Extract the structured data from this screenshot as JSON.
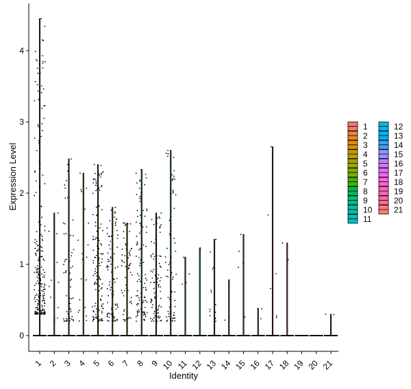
{
  "chart_data": {
    "type": "violin",
    "xlabel": "Identity",
    "ylabel": "Expression Level",
    "categories": [
      "1",
      "2",
      "3",
      "4",
      "5",
      "6",
      "7",
      "8",
      "9",
      "10",
      "11",
      "12",
      "13",
      "14",
      "15",
      "16",
      "17",
      "18",
      "19",
      "20",
      "21"
    ],
    "ylim": [
      -0.23,
      4.6
    ],
    "yticks": [
      0,
      1,
      2,
      3,
      4
    ],
    "max_values": [
      4.45,
      1.72,
      2.48,
      2.28,
      2.4,
      1.8,
      1.58,
      2.33,
      1.72,
      2.6,
      1.1,
      1.23,
      1.35,
      0.78,
      1.42,
      0.38,
      2.65,
      1.3,
      0.0,
      0.0,
      0.3
    ],
    "point_counts": [
      230,
      12,
      60,
      20,
      140,
      90,
      60,
      100,
      90,
      70,
      4,
      1,
      14,
      2,
      5,
      3,
      6,
      2,
      0,
      0,
      2
    ],
    "legend": {
      "title": "",
      "placement": "right",
      "entries": [
        "1",
        "2",
        "3",
        "4",
        "5",
        "6",
        "7",
        "8",
        "9",
        "10",
        "11",
        "12",
        "13",
        "14",
        "15",
        "16",
        "17",
        "18",
        "19",
        "20",
        "21"
      ],
      "colors": [
        "#F8766D",
        "#EA8331",
        "#D89000",
        "#C09B00",
        "#A3A500",
        "#7CAE00",
        "#39B600",
        "#00BB4E",
        "#00BF7D",
        "#00C1A3",
        "#00BFC4",
        "#00BAE0",
        "#00B0F6",
        "#35A2FF",
        "#9590FF",
        "#C77CFF",
        "#E76BF3",
        "#FA62DB",
        "#FF62BC",
        "#FF6C91",
        "#FF7F6F"
      ]
    },
    "grid": false
  }
}
